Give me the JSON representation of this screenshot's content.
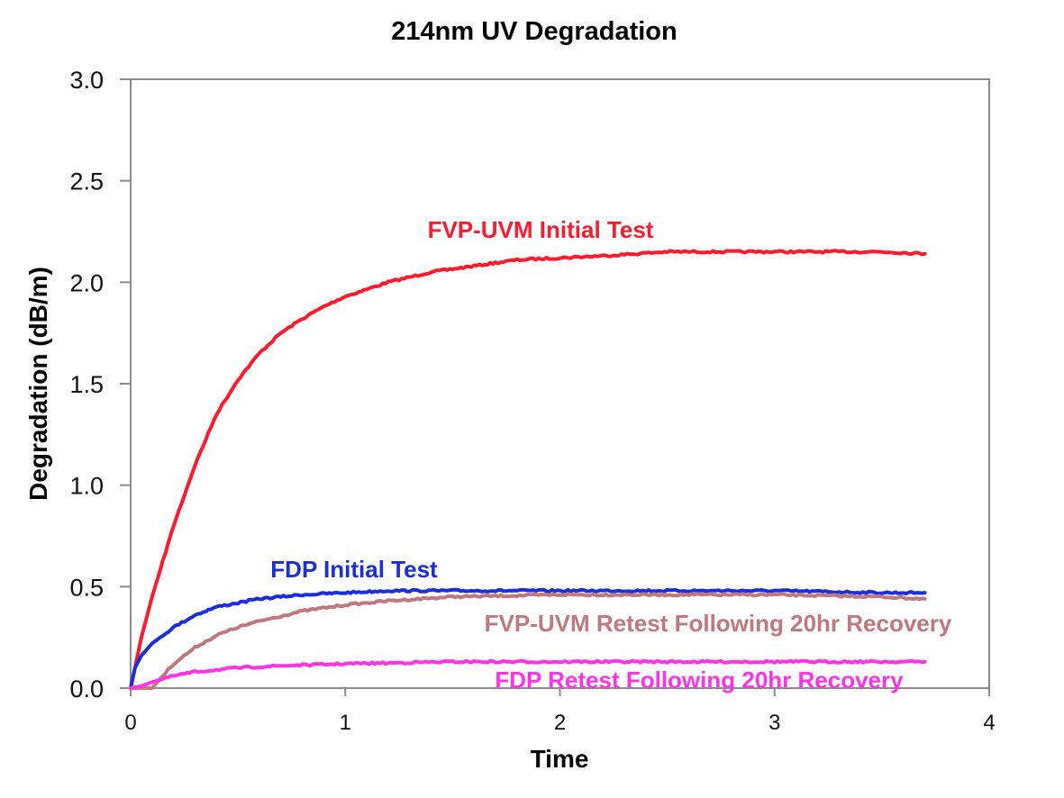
{
  "chart_data": {
    "type": "line",
    "title": "214nm UV Degradation",
    "xlabel": "Time",
    "ylabel": "Degradation (dB/m)",
    "xlim": [
      0,
      4
    ],
    "ylim": [
      0.0,
      3.0
    ],
    "x_ticks": [
      "0",
      "1",
      "2",
      "3",
      "4"
    ],
    "x_tick_values": [
      0,
      1,
      2,
      3,
      4
    ],
    "y_ticks": [
      "0.0",
      "0.5",
      "1.0",
      "1.5",
      "2.0",
      "2.5",
      "3.0"
    ],
    "y_tick_values": [
      0.0,
      0.5,
      1.0,
      1.5,
      2.0,
      2.5,
      3.0
    ],
    "grid": false,
    "legend": "inline labels",
    "series": [
      {
        "name": "FVP-UVM Initial Test",
        "color": "#ff1a2e",
        "x": [
          0,
          0.05,
          0.1,
          0.2,
          0.3,
          0.4,
          0.5,
          0.6,
          0.7,
          0.8,
          0.9,
          1.0,
          1.2,
          1.4,
          1.6,
          1.8,
          2.0,
          2.2,
          2.5,
          2.8,
          3.0,
          3.3,
          3.5,
          3.7
        ],
        "y": [
          0.0,
          0.25,
          0.45,
          0.8,
          1.1,
          1.35,
          1.52,
          1.65,
          1.75,
          1.82,
          1.88,
          1.93,
          2.0,
          2.05,
          2.08,
          2.11,
          2.12,
          2.13,
          2.15,
          2.15,
          2.15,
          2.15,
          2.15,
          2.14
        ]
      },
      {
        "name": "FDP Initial Test",
        "color": "#1a2ee0",
        "x": [
          0,
          0.02,
          0.05,
          0.1,
          0.2,
          0.3,
          0.4,
          0.5,
          0.6,
          0.8,
          1.0,
          1.2,
          1.5,
          2.0,
          2.5,
          3.0,
          3.5,
          3.7
        ],
        "y": [
          0.0,
          0.1,
          0.16,
          0.22,
          0.3,
          0.36,
          0.4,
          0.42,
          0.44,
          0.46,
          0.47,
          0.48,
          0.48,
          0.48,
          0.48,
          0.48,
          0.47,
          0.47
        ]
      },
      {
        "name": "FVP-UVM Retest Following 20hr Recovery",
        "color": "#c07880",
        "x": [
          0,
          0.1,
          0.15,
          0.2,
          0.3,
          0.4,
          0.5,
          0.6,
          0.8,
          1.0,
          1.2,
          1.5,
          2.0,
          2.5,
          3.0,
          3.5,
          3.7
        ],
        "y": [
          0.0,
          0.0,
          0.06,
          0.12,
          0.2,
          0.26,
          0.3,
          0.33,
          0.38,
          0.41,
          0.43,
          0.45,
          0.46,
          0.46,
          0.46,
          0.45,
          0.44
        ]
      },
      {
        "name": "FDP Retest Following 20hr Recovery",
        "color": "#ff33e6",
        "x": [
          0,
          0.05,
          0.1,
          0.2,
          0.3,
          0.4,
          0.5,
          0.7,
          1.0,
          1.5,
          2.0,
          2.5,
          3.0,
          3.5,
          3.7
        ],
        "y": [
          0.0,
          0.01,
          0.03,
          0.06,
          0.08,
          0.09,
          0.1,
          0.11,
          0.12,
          0.13,
          0.13,
          0.13,
          0.13,
          0.13,
          0.13
        ]
      }
    ],
    "annotations": [
      {
        "text": "FVP-UVM Initial Test",
        "series": 0
      },
      {
        "text": "FDP Initial Test",
        "series": 1
      },
      {
        "text": "FVP-UVM Retest Following 20hr Recovery",
        "series": 2
      },
      {
        "text": "FDP Retest Following 20hr Recovery",
        "series": 3
      }
    ]
  }
}
